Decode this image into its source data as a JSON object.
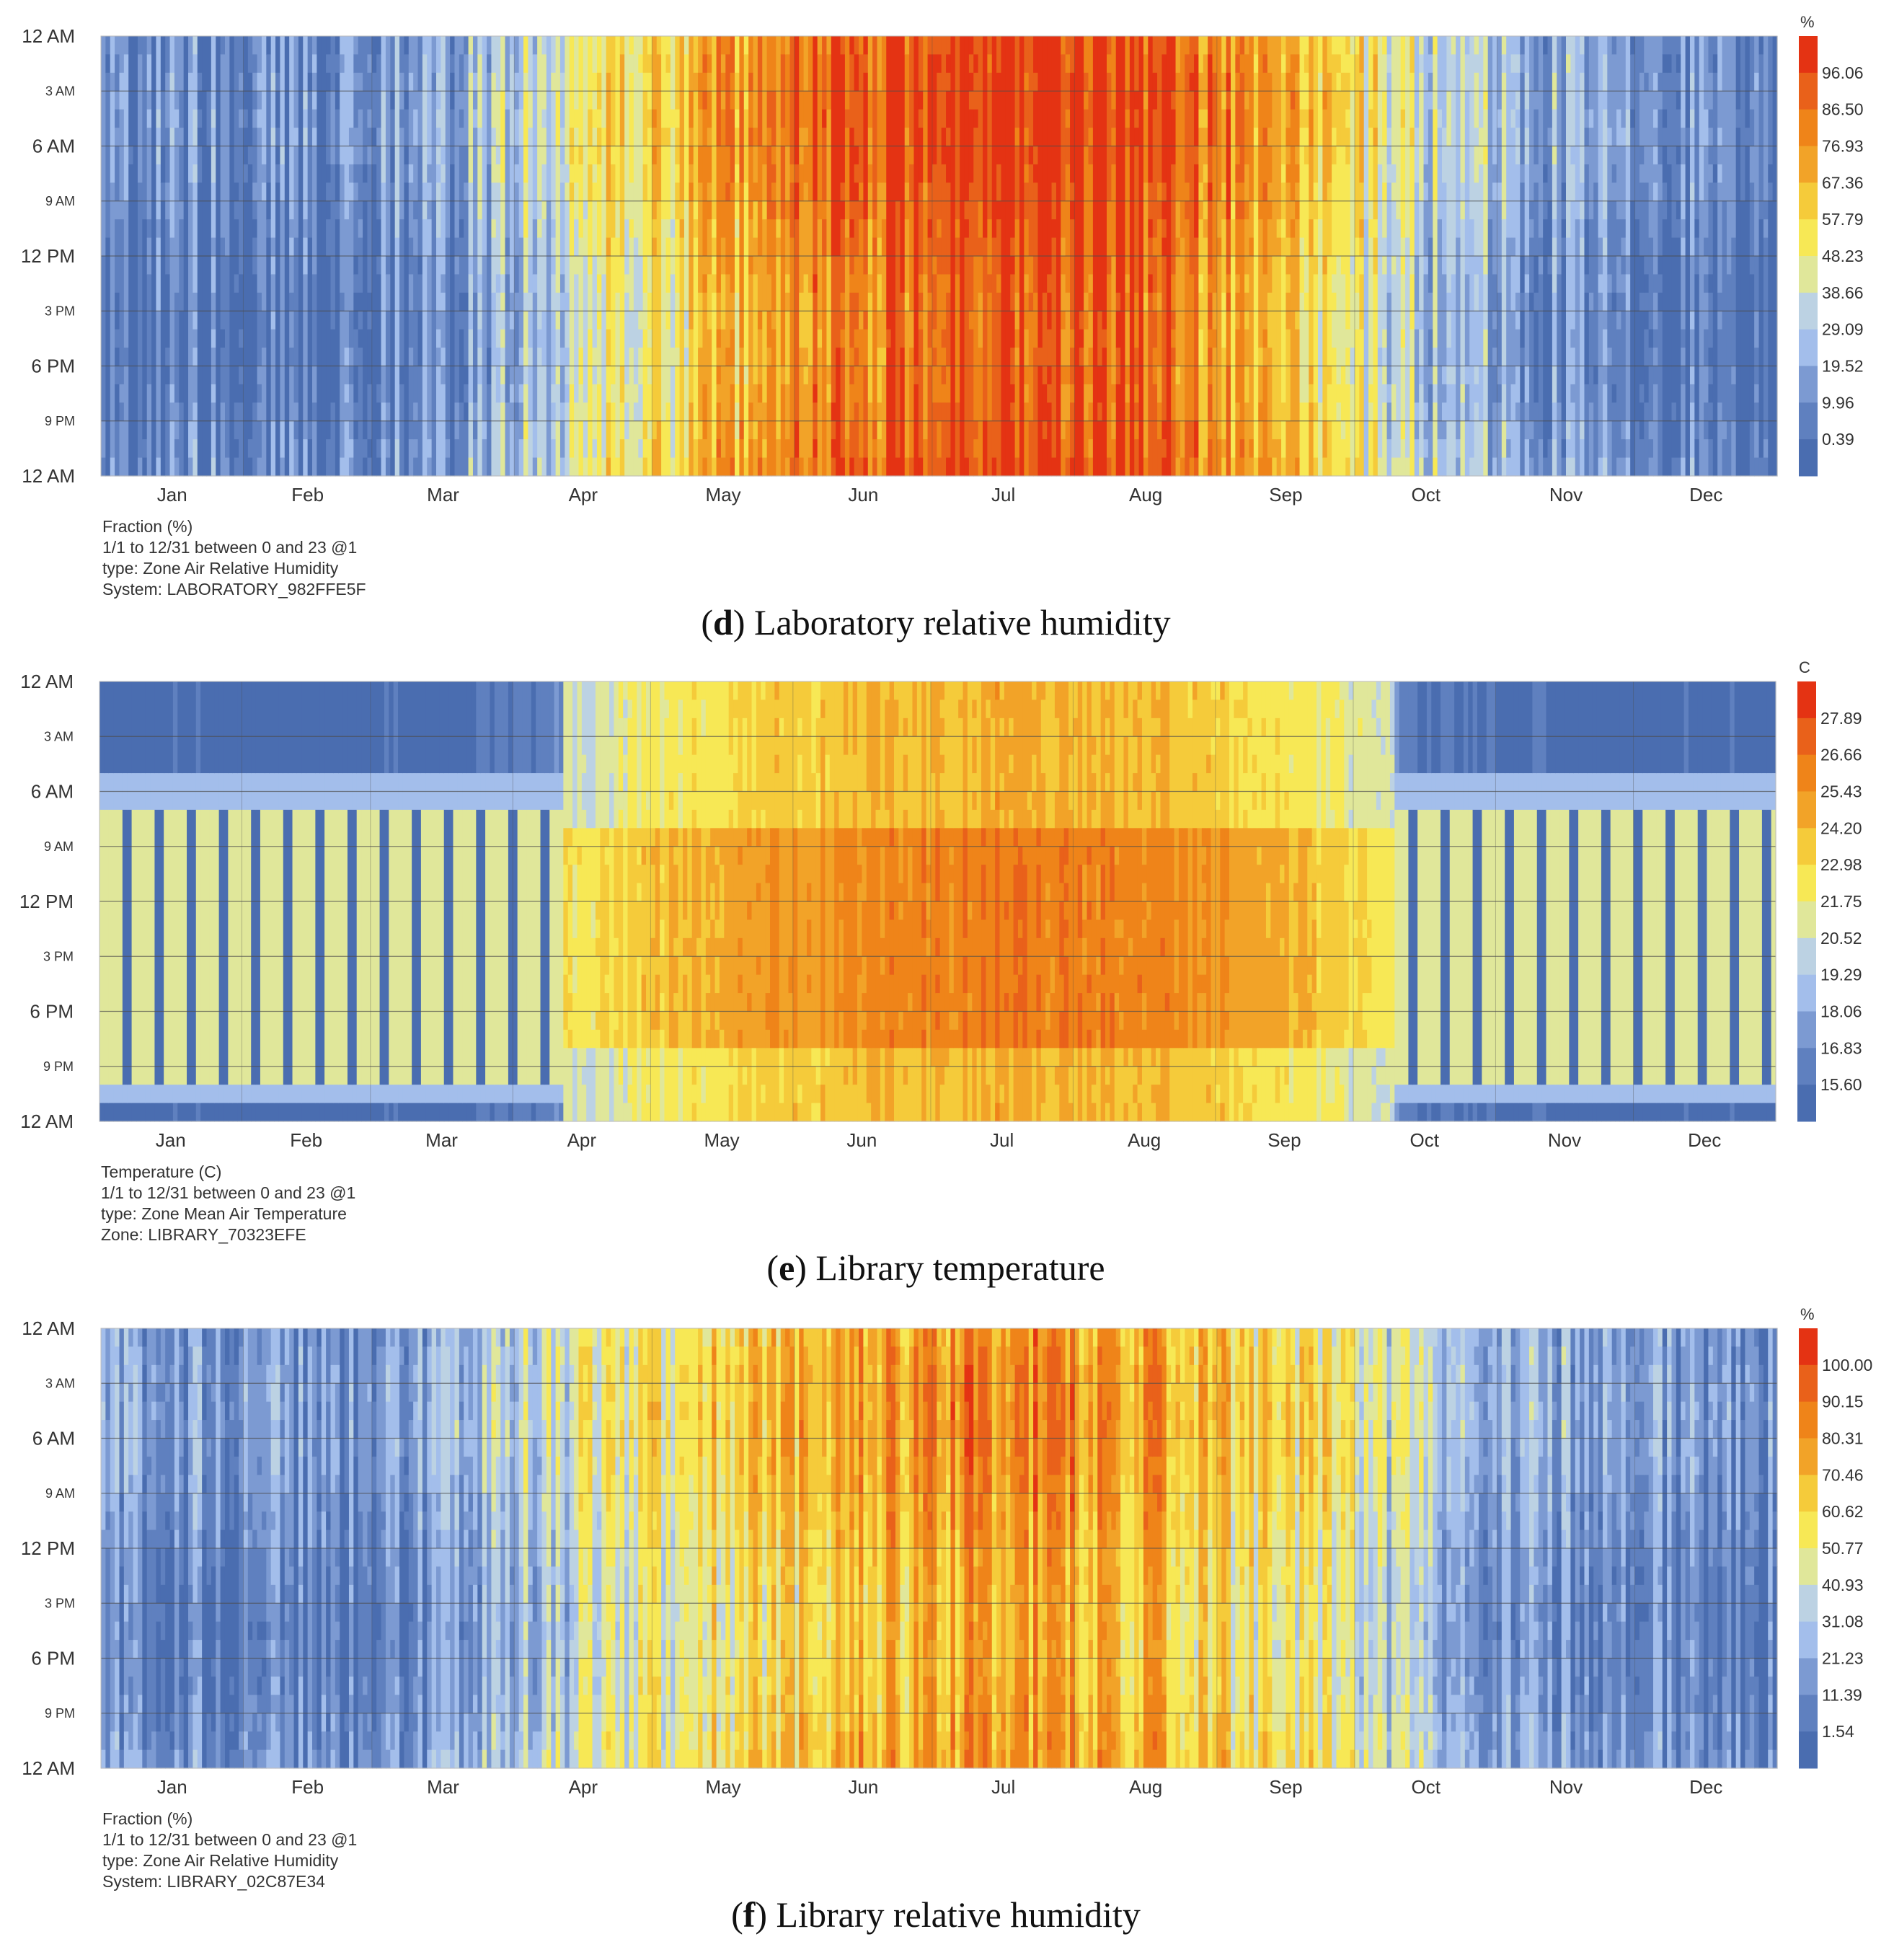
{
  "palette": {
    "cmap": [
      "#4A6DB0",
      "#5F80BF",
      "#7C9AD2",
      "#A3BEEB",
      "#BCD2E3",
      "#E0E79A",
      "#F7E855",
      "#F5CB3A",
      "#F2A328",
      "#EF8419",
      "#E9611A",
      "#E43313"
    ],
    "grid_line": "#4D4D4D",
    "axis_text": "#333333"
  },
  "chart_data": [
    {
      "type": "heatmap",
      "caption_letter": "d",
      "caption_text": "Laboratory relative humidity",
      "unit": "%",
      "x_tick_labels": [
        "Jan",
        "Feb",
        "Mar",
        "Apr",
        "May",
        "Jun",
        "Jul",
        "Aug",
        "Sep",
        "Oct",
        "Nov",
        "Dec"
      ],
      "y_tick_labels": [
        "12 AM",
        "3 AM",
        "6 AM",
        "9 AM",
        "12 PM",
        "3 PM",
        "6 PM",
        "9 PM",
        "12 AM"
      ],
      "x_range": [
        "1/1",
        "12/31"
      ],
      "y_range_hours": [
        0,
        23
      ],
      "legend_values": [
        96.06,
        86.5,
        76.93,
        67.36,
        57.79,
        48.23,
        38.66,
        29.09,
        19.52,
        9.96,
        0.39
      ],
      "value_range": [
        0.39,
        100
      ],
      "monthly_mean_estimate": [
        15,
        14,
        20,
        48,
        68,
        85,
        95,
        88,
        62,
        35,
        20,
        14
      ],
      "metadata_lines": [
        "Fraction (%)",
        "1/1 to 12/31 between 0 and 23 @1",
        "type: Zone Air Relative Humidity",
        "System: LABORATORY_982FFE5F"
      ]
    },
    {
      "type": "heatmap",
      "caption_letter": "e",
      "caption_text": "Library temperature",
      "unit": "C",
      "x_tick_labels": [
        "Jan",
        "Feb",
        "Mar",
        "Apr",
        "May",
        "Jun",
        "Jul",
        "Aug",
        "Sep",
        "Oct",
        "Nov",
        "Dec"
      ],
      "y_tick_labels": [
        "12 AM",
        "3 AM",
        "6 AM",
        "9 AM",
        "12 PM",
        "3 PM",
        "6 PM",
        "9 PM",
        "12 AM"
      ],
      "x_range": [
        "1/1",
        "12/31"
      ],
      "y_range_hours": [
        0,
        23
      ],
      "legend_values": [
        27.89,
        26.66,
        25.43,
        24.2,
        22.98,
        21.75,
        20.52,
        19.29,
        18.06,
        16.83,
        15.6
      ],
      "value_range": [
        15.6,
        29.0
      ],
      "monthly_mean_estimate": [
        19.5,
        19.5,
        20.0,
        22.0,
        24.0,
        25.0,
        25.5,
        25.0,
        23.5,
        21.0,
        19.5,
        19.5
      ],
      "metadata_lines": [
        "Temperature (C)",
        "1/1 to 12/31 between 0 and 23 @1",
        "type: Zone Mean Air Temperature",
        "Zone: LIBRARY_70323EFE"
      ]
    },
    {
      "type": "heatmap",
      "caption_letter": "f",
      "caption_text": "Library relative humidity",
      "unit": "%",
      "x_tick_labels": [
        "Jan",
        "Feb",
        "Mar",
        "Apr",
        "May",
        "Jun",
        "Jul",
        "Aug",
        "Sep",
        "Oct",
        "Nov",
        "Dec"
      ],
      "y_tick_labels": [
        "12 AM",
        "3 AM",
        "6 AM",
        "9 AM",
        "12 PM",
        "3 PM",
        "6 PM",
        "9 PM",
        "12 AM"
      ],
      "x_range": [
        "1/1",
        "12/31"
      ],
      "y_range_hours": [
        0,
        23
      ],
      "legend_values": [
        100.0,
        90.15,
        80.31,
        70.46,
        60.62,
        50.77,
        40.93,
        31.08,
        21.23,
        11.39,
        1.54
      ],
      "value_range": [
        1.54,
        105.0
      ],
      "monthly_mean_estimate": [
        18,
        17,
        22,
        45,
        62,
        72,
        80,
        72,
        55,
        35,
        22,
        18
      ],
      "metadata_lines": [
        "Fraction (%)",
        "1/1 to 12/31 between 0 and 23 @1",
        "type: Zone Air Relative Humidity",
        "System: LIBRARY_02C87E34"
      ]
    }
  ]
}
